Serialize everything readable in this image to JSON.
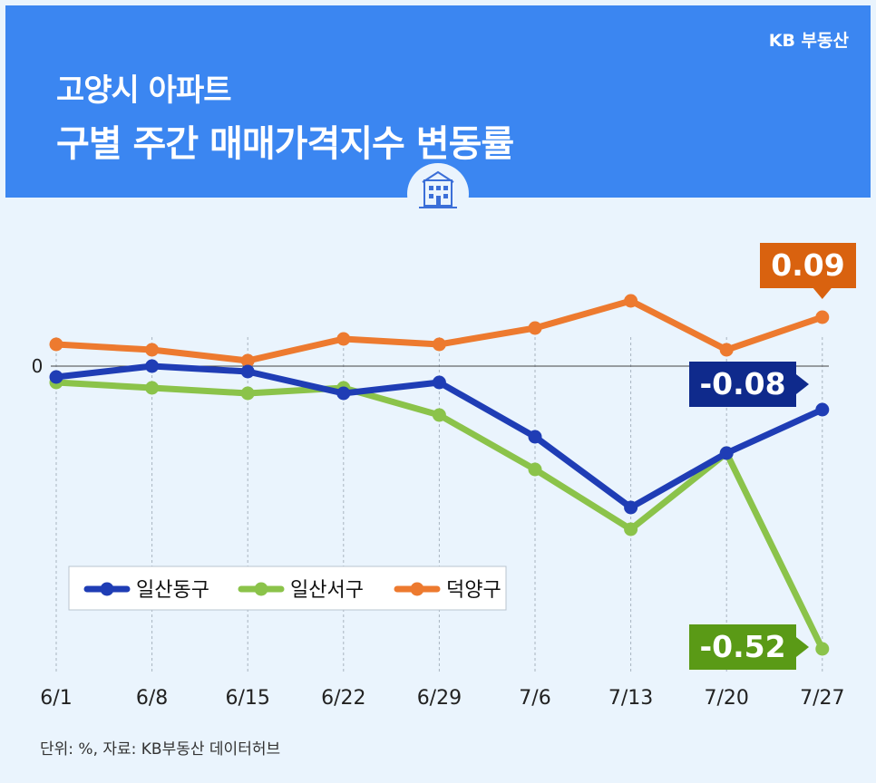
{
  "header": {
    "brand": "KB 부동산",
    "title_line1": "고양시 아파트",
    "title_line2": "구별 주간 매매가격지수 변동률",
    "icon": "building-icon"
  },
  "footnote": "단위: %, 자료: KB부동산 데이터허브",
  "colors": {
    "banner": "#3b86f1",
    "background": "#eaf4fd",
    "ilsan_dong": "#1f3db5",
    "ilsan_seo": "#8bc34a",
    "deogyang": "#ed7a2f",
    "label_dong": "#0f2a8c",
    "label_seo": "#5a9a16",
    "label_deog": "#d9620f"
  },
  "chart_data": {
    "type": "line",
    "categories": [
      "6/1",
      "6/8",
      "6/15",
      "6/22",
      "6/29",
      "7/6",
      "7/13",
      "7/20",
      "7/27"
    ],
    "zero_label": "0",
    "series": [
      {
        "name": "일산동구",
        "values": [
          -0.02,
          0.0,
          -0.01,
          -0.05,
          -0.03,
          -0.13,
          -0.26,
          -0.16,
          -0.08
        ]
      },
      {
        "name": "일산서구",
        "values": [
          -0.03,
          -0.04,
          -0.05,
          -0.04,
          -0.09,
          -0.19,
          -0.3,
          -0.16,
          -0.52
        ]
      },
      {
        "name": "덕양구",
        "values": [
          0.04,
          0.03,
          0.01,
          0.05,
          0.04,
          0.07,
          0.12,
          0.03,
          0.09
        ]
      }
    ],
    "end_labels": [
      "-0.08",
      "-0.52",
      "0.09"
    ],
    "legend_position": "bottom-left",
    "grid": "vertical-dashed"
  }
}
